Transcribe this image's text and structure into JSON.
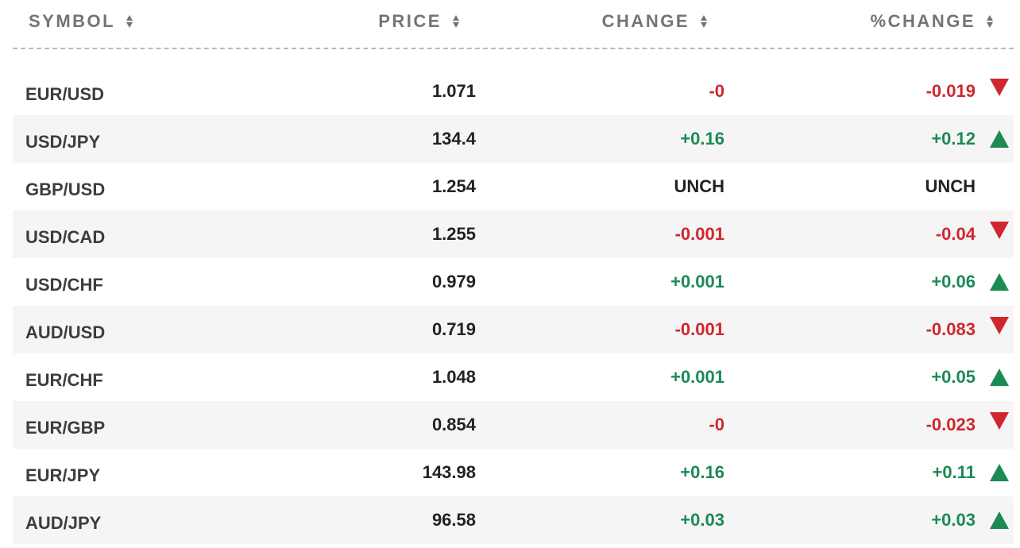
{
  "header": {
    "symbol": "SYMBOL",
    "price": "PRICE",
    "change": "CHANGE",
    "pct_change": "%CHANGE"
  },
  "colors": {
    "positive": "#1b8a53",
    "negative": "#d0262d",
    "unchanged": "#222222"
  },
  "rows": [
    {
      "symbol": "EUR/USD",
      "price": "1.071",
      "change": "-0",
      "pct": "-0.019",
      "dir": "down"
    },
    {
      "symbol": "USD/JPY",
      "price": "134.4",
      "change": "+0.16",
      "pct": "+0.12",
      "dir": "up"
    },
    {
      "symbol": "GBP/USD",
      "price": "1.254",
      "change": "UNCH",
      "pct": "UNCH",
      "dir": "flat"
    },
    {
      "symbol": "USD/CAD",
      "price": "1.255",
      "change": "-0.001",
      "pct": "-0.04",
      "dir": "down"
    },
    {
      "symbol": "USD/CHF",
      "price": "0.979",
      "change": "+0.001",
      "pct": "+0.06",
      "dir": "up"
    },
    {
      "symbol": "AUD/USD",
      "price": "0.719",
      "change": "-0.001",
      "pct": "-0.083",
      "dir": "down"
    },
    {
      "symbol": "EUR/CHF",
      "price": "1.048",
      "change": "+0.001",
      "pct": "+0.05",
      "dir": "up"
    },
    {
      "symbol": "EUR/GBP",
      "price": "0.854",
      "change": "-0",
      "pct": "-0.023",
      "dir": "down"
    },
    {
      "symbol": "EUR/JPY",
      "price": "143.98",
      "change": "+0.16",
      "pct": "+0.11",
      "dir": "up"
    },
    {
      "symbol": "AUD/JPY",
      "price": "96.58",
      "change": "+0.03",
      "pct": "+0.03",
      "dir": "up"
    }
  ]
}
